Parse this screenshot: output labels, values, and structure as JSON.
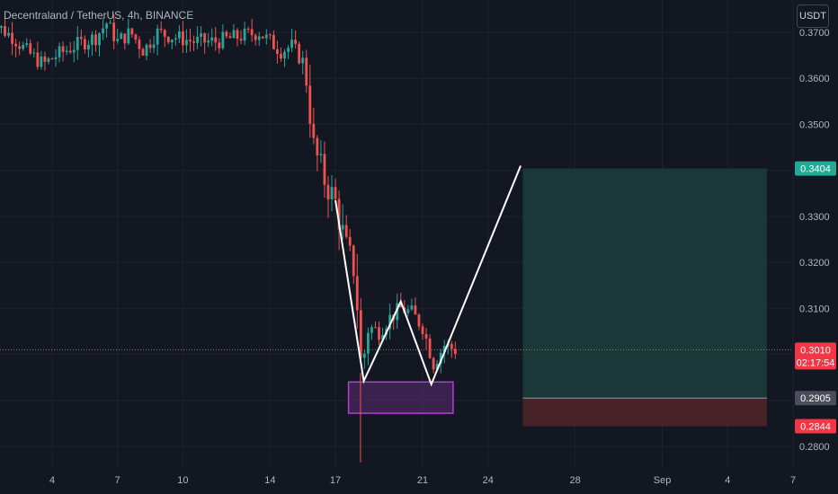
{
  "header": {
    "title": "Decentraland / TetherUS, 4h, BINANCE",
    "currency": "USDT"
  },
  "colors": {
    "background": "#131722",
    "up": "#26a69a",
    "down": "#ef5350",
    "grid": "#1e222d",
    "pattern": "#ffffff",
    "zone_border": "#b13fd6",
    "zone_fill": "#5b2a73",
    "target_fill": "#1a3a3a",
    "stop_fill": "#4a2329"
  },
  "chart_data": {
    "type": "candlestick",
    "title": "Decentraland / TetherUS, 4h, BINANCE",
    "ylim": [
      0.2775,
      0.372
    ],
    "y_ticks": [
      "0.3700",
      "0.3600",
      "0.3500",
      "0.3400",
      "0.3300",
      "0.3200",
      "0.3100",
      "0.3000",
      "0.2900",
      "0.2800"
    ],
    "x_ticks": [
      {
        "label": "4",
        "day": 4
      },
      {
        "label": "7",
        "day": 7
      },
      {
        "label": "10",
        "day": 10
      },
      {
        "label": "14",
        "day": 14
      },
      {
        "label": "17",
        "day": 17
      },
      {
        "label": "21",
        "day": 21
      },
      {
        "label": "24",
        "day": 24
      },
      {
        "label": "28",
        "day": 28
      },
      {
        "label": "Sep",
        "day": 32
      },
      {
        "label": "4",
        "day": 35
      },
      {
        "label": "7",
        "day": 38
      }
    ],
    "price_labels": {
      "current": {
        "value": "0.3010",
        "countdown": "02:17:54"
      },
      "target": "0.3404",
      "entry": "0.2905",
      "stop": "0.2844"
    },
    "candle_trend": [
      {
        "day": 1.0,
        "price": 0.373
      },
      {
        "day": 2.2,
        "price": 0.369
      },
      {
        "day": 2.8,
        "price": 0.366
      },
      {
        "day": 3.6,
        "price": 0.363
      },
      {
        "day": 4.2,
        "price": 0.365
      },
      {
        "day": 5.0,
        "price": 0.367
      },
      {
        "day": 6.0,
        "price": 0.369
      },
      {
        "day": 6.5,
        "price": 0.372
      },
      {
        "day": 7.0,
        "price": 0.368
      },
      {
        "day": 7.6,
        "price": 0.37
      },
      {
        "day": 8.2,
        "price": 0.366
      },
      {
        "day": 8.8,
        "price": 0.37
      },
      {
        "day": 9.6,
        "price": 0.369
      },
      {
        "day": 10.5,
        "price": 0.368
      },
      {
        "day": 11.5,
        "price": 0.368
      },
      {
        "day": 12.5,
        "price": 0.369
      },
      {
        "day": 13.5,
        "price": 0.37
      },
      {
        "day": 14.5,
        "price": 0.366
      },
      {
        "day": 15.0,
        "price": 0.367
      },
      {
        "day": 15.6,
        "price": 0.363
      },
      {
        "day": 16.0,
        "price": 0.345
      },
      {
        "day": 16.5,
        "price": 0.338
      },
      {
        "day": 17.0,
        "price": 0.333
      },
      {
        "day": 17.5,
        "price": 0.323
      },
      {
        "day": 17.9,
        "price": 0.318
      },
      {
        "day": 18.2,
        "price": 0.296
      },
      {
        "day": 18.5,
        "price": 0.306
      },
      {
        "day": 19.0,
        "price": 0.305
      },
      {
        "day": 19.5,
        "price": 0.308
      },
      {
        "day": 20.0,
        "price": 0.31
      },
      {
        "day": 20.5,
        "price": 0.309
      },
      {
        "day": 21.0,
        "price": 0.306
      },
      {
        "day": 21.5,
        "price": 0.298
      },
      {
        "day": 22.0,
        "price": 0.302
      },
      {
        "day": 22.5,
        "price": 0.301
      }
    ],
    "pattern_points": [
      {
        "day": 17.0,
        "price": 0.3335
      },
      {
        "day": 18.3,
        "price": 0.2942
      },
      {
        "day": 20.0,
        "price": 0.3115
      },
      {
        "day": 21.4,
        "price": 0.2935
      },
      {
        "day": 25.5,
        "price": 0.341
      }
    ],
    "support_zone": {
      "day_start": 17.6,
      "day_end": 22.4,
      "price_top": 0.294,
      "price_bottom": 0.2872
    },
    "position": {
      "day_start": 25.6,
      "day_end": 36.8,
      "target": 0.3404,
      "entry": 0.2905,
      "stop": 0.2844
    },
    "current_price": 0.301
  }
}
